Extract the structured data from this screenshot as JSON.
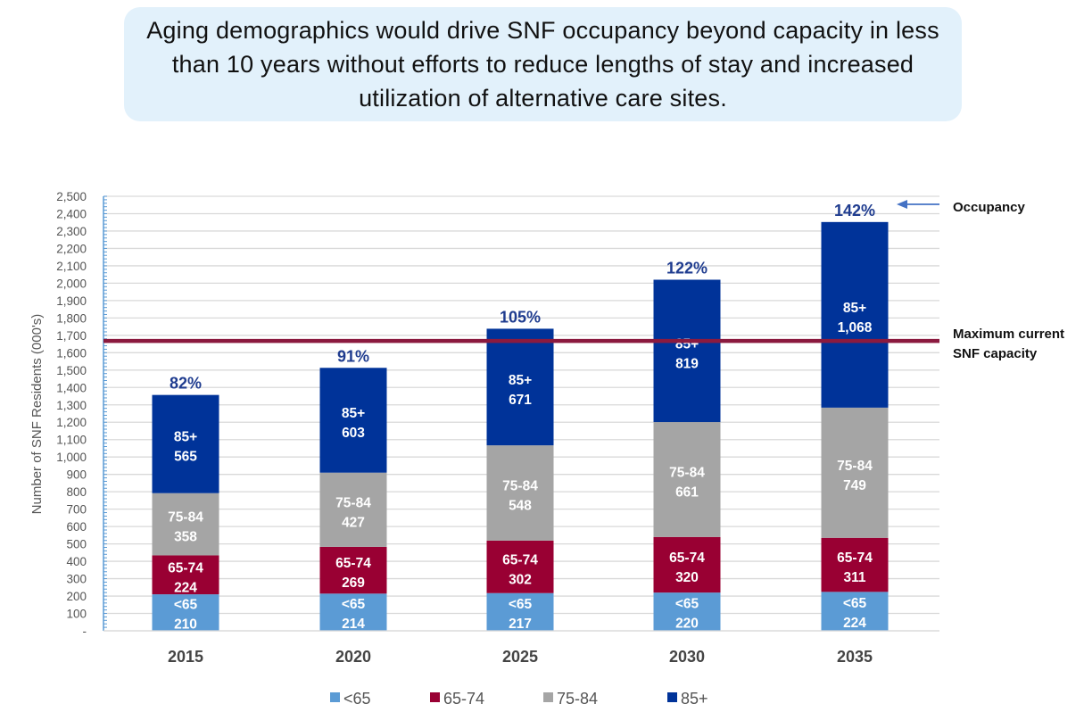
{
  "headline": "Aging demographics would drive SNF occupancy beyond capacity in less than 10 years without efforts to reduce lengths of stay and increased utilization of alternative care sites.",
  "chart_data": {
    "type": "bar",
    "stacked": true,
    "title": "",
    "xlabel": "",
    "ylabel": "Number of SNF Residents (000's)",
    "ylim": [
      0,
      2500
    ],
    "ytick_step": 100,
    "yticks": [
      "-",
      "100",
      "200",
      "300",
      "400",
      "500",
      "600",
      "700",
      "800",
      "900",
      "1,000",
      "1,100",
      "1,200",
      "1,300",
      "1,400",
      "1,500",
      "1,600",
      "1,700",
      "1,800",
      "1,900",
      "2,000",
      "2,100",
      "2,200",
      "2,300",
      "2,400",
      "2,500"
    ],
    "grid": true,
    "categories": [
      "2015",
      "2020",
      "2025",
      "2030",
      "2035"
    ],
    "series": [
      {
        "name": "<65",
        "color": "#5b9bd5",
        "values": [
          210,
          214,
          217,
          220,
          224
        ],
        "labels": [
          "210",
          "214",
          "217",
          "220",
          "224"
        ]
      },
      {
        "name": "65-74",
        "color": "#990033",
        "values": [
          224,
          269,
          302,
          320,
          311
        ],
        "labels": [
          "224",
          "269",
          "302",
          "320",
          "311"
        ]
      },
      {
        "name": "75-84",
        "color": "#a5a5a5",
        "values": [
          358,
          427,
          548,
          661,
          749
        ],
        "labels": [
          "358",
          "427",
          "548",
          "661",
          "749"
        ]
      },
      {
        "name": "85+",
        "color": "#003399",
        "values": [
          565,
          603,
          671,
          819,
          1068
        ],
        "labels": [
          "565",
          "603",
          "671",
          "819",
          "1,068"
        ]
      }
    ],
    "occupancy": [
      "82%",
      "91%",
      "105%",
      "122%",
      "142%"
    ],
    "capacity_line": {
      "value": 1668,
      "color": "#8b1a3f",
      "label": [
        "Maximum current",
        "SNF capacity"
      ]
    },
    "occupancy_annotation": "Occupancy",
    "accent_color": "#1f3c8f",
    "legend": {
      "position": "bottom",
      "entries": [
        "<65",
        "65-74",
        "75-84",
        "85+"
      ]
    }
  }
}
